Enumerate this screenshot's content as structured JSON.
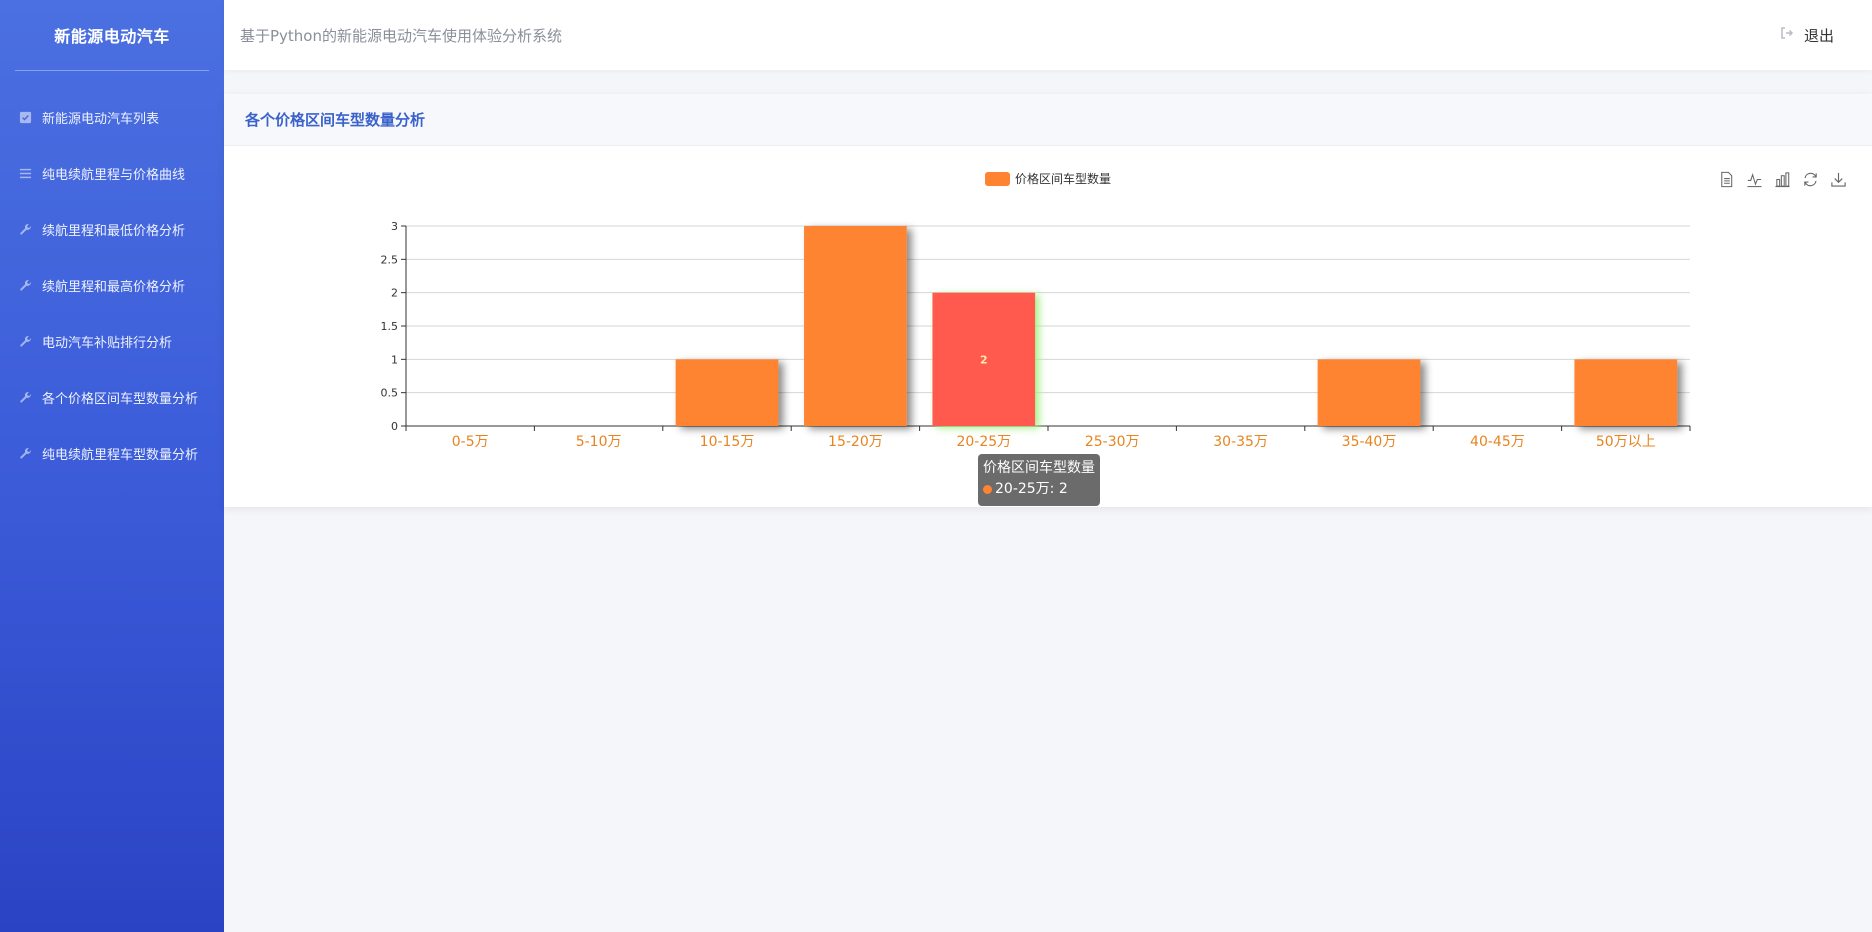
{
  "sidebar": {
    "brand": "新能源电动汽车",
    "items": [
      {
        "label": "新能源电动汽车列表",
        "icon": "checkbox-icon"
      },
      {
        "label": "纯电续航里程与价格曲线",
        "icon": "list-icon"
      },
      {
        "label": "续航里程和最低价格分析",
        "icon": "wrench-icon"
      },
      {
        "label": "续航里程和最高价格分析",
        "icon": "wrench-icon"
      },
      {
        "label": "电动汽车补贴排行分析",
        "icon": "wrench-icon"
      },
      {
        "label": "各个价格区间车型数量分析",
        "icon": "wrench-icon"
      },
      {
        "label": "纯电续航里程车型数量分析",
        "icon": "wrench-icon"
      }
    ]
  },
  "header": {
    "system_title": "基于Python的新能源电动汽车使用体验分析系统",
    "logout_label": "退出",
    "logout_icon": "sign-out-icon"
  },
  "card": {
    "title": "各个价格区间车型数量分析"
  },
  "toolbox": {
    "icons": [
      "data-view-icon",
      "line-chart-icon",
      "bar-chart-icon",
      "restore-icon",
      "save-image-icon"
    ]
  },
  "tooltip": {
    "series": "价格区间车型数量",
    "entry": "20-25万: 2"
  },
  "colors": {
    "bar": "#ff8431",
    "bar_highlight": "#ff5a4d",
    "axis_label": "#e8841f",
    "accent": "#3a62cc"
  },
  "chart_data": {
    "type": "bar",
    "categories": [
      "0-5万",
      "5-10万",
      "10-15万",
      "15-20万",
      "20-25万",
      "25-30万",
      "30-35万",
      "35-40万",
      "40-45万",
      "50万以上"
    ],
    "series": [
      {
        "name": "价格区间车型数量",
        "values": [
          0,
          0,
          1,
          3,
          2,
          0,
          0,
          1,
          0,
          1
        ]
      }
    ],
    "ylim": [
      0,
      3
    ],
    "yticks": [
      "0",
      "0.5",
      "1",
      "1.5",
      "2",
      "2.5",
      "3"
    ],
    "highlighted_index": 4,
    "highlighted_label": "2",
    "legend": "top-center",
    "grid": true
  }
}
